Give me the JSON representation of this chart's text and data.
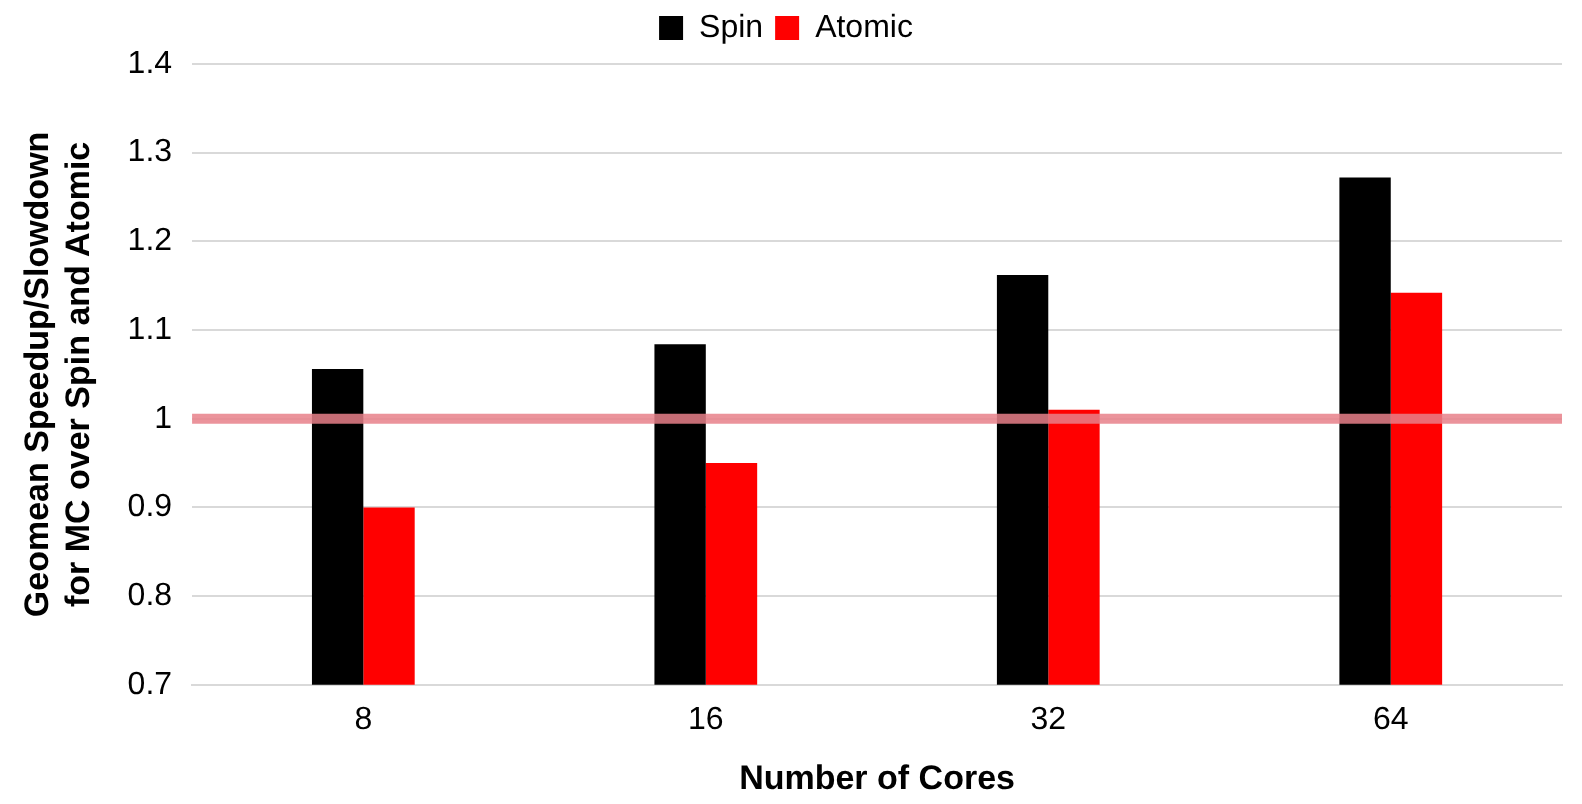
{
  "chart_data": {
    "type": "bar",
    "xlabel": "Number of Cores",
    "ylabel": "Geomean Speedup/Slowdown for MC over Spin and Atomic",
    "categories": [
      "8",
      "16",
      "32",
      "64"
    ],
    "series": [
      {
        "name": "Spin",
        "color": "#000000",
        "values": [
          1.056,
          1.084,
          1.162,
          1.272
        ]
      },
      {
        "name": "Atomic",
        "color": "#ff0000",
        "values": [
          0.9,
          0.95,
          1.01,
          1.142
        ]
      }
    ],
    "ylim": [
      0.7,
      1.4
    ],
    "yticks": [
      0.7,
      0.8,
      0.9,
      1,
      1.1,
      1.2,
      1.3,
      1.4
    ],
    "grid": "y",
    "legend": "top",
    "ref_lines": [
      {
        "axis": "y",
        "value": 1,
        "color": "#e8808a"
      }
    ]
  }
}
